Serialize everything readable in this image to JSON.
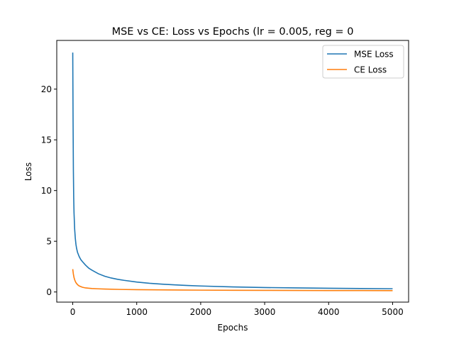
{
  "chart_data": {
    "type": "line",
    "title": "MSE vs CE: Loss vs Epochs (lr = 0.005, reg = 0",
    "xlabel": "Epochs",
    "ylabel": "Loss",
    "xlim": [
      -250,
      5250
    ],
    "ylim": [
      -1.0,
      24.8
    ],
    "xticks": [
      0,
      1000,
      2000,
      3000,
      4000,
      5000
    ],
    "xtick_labels": [
      "0",
      "1000",
      "2000",
      "3000",
      "4000",
      "5000"
    ],
    "yticks": [
      0,
      5,
      10,
      15,
      20
    ],
    "ytick_labels": [
      "0",
      "5",
      "10",
      "15",
      "20"
    ],
    "grid": false,
    "legend": {
      "placement": "top-right"
    },
    "series": [
      {
        "name": "MSE Loss",
        "color": "#1f77b4",
        "x": [
          0,
          5,
          10,
          15,
          20,
          30,
          40,
          50,
          60,
          75,
          100,
          125,
          150,
          200,
          250,
          300,
          400,
          500,
          600,
          700,
          800,
          1000,
          1200,
          1400,
          1600,
          1800,
          2000,
          2500,
          3000,
          3500,
          4000,
          4500,
          5000
        ],
        "y": [
          23.6,
          17.0,
          12.0,
          9.3,
          7.8,
          6.2,
          5.3,
          4.7,
          4.3,
          3.9,
          3.5,
          3.2,
          3.0,
          2.65,
          2.35,
          2.15,
          1.8,
          1.55,
          1.38,
          1.25,
          1.15,
          0.98,
          0.86,
          0.77,
          0.7,
          0.64,
          0.59,
          0.5,
          0.44,
          0.4,
          0.37,
          0.34,
          0.32
        ]
      },
      {
        "name": "CE Loss",
        "color": "#ff7f0e",
        "x": [
          0,
          10,
          20,
          30,
          40,
          50,
          75,
          100,
          150,
          200,
          300,
          400,
          500,
          750,
          1000,
          1500,
          2000,
          2500,
          3000,
          3500,
          4000,
          4500,
          5000
        ],
        "y": [
          2.25,
          1.75,
          1.42,
          1.2,
          1.05,
          0.92,
          0.72,
          0.6,
          0.47,
          0.4,
          0.34,
          0.31,
          0.29,
          0.25,
          0.23,
          0.2,
          0.18,
          0.17,
          0.16,
          0.15,
          0.14,
          0.14,
          0.13
        ]
      }
    ]
  }
}
